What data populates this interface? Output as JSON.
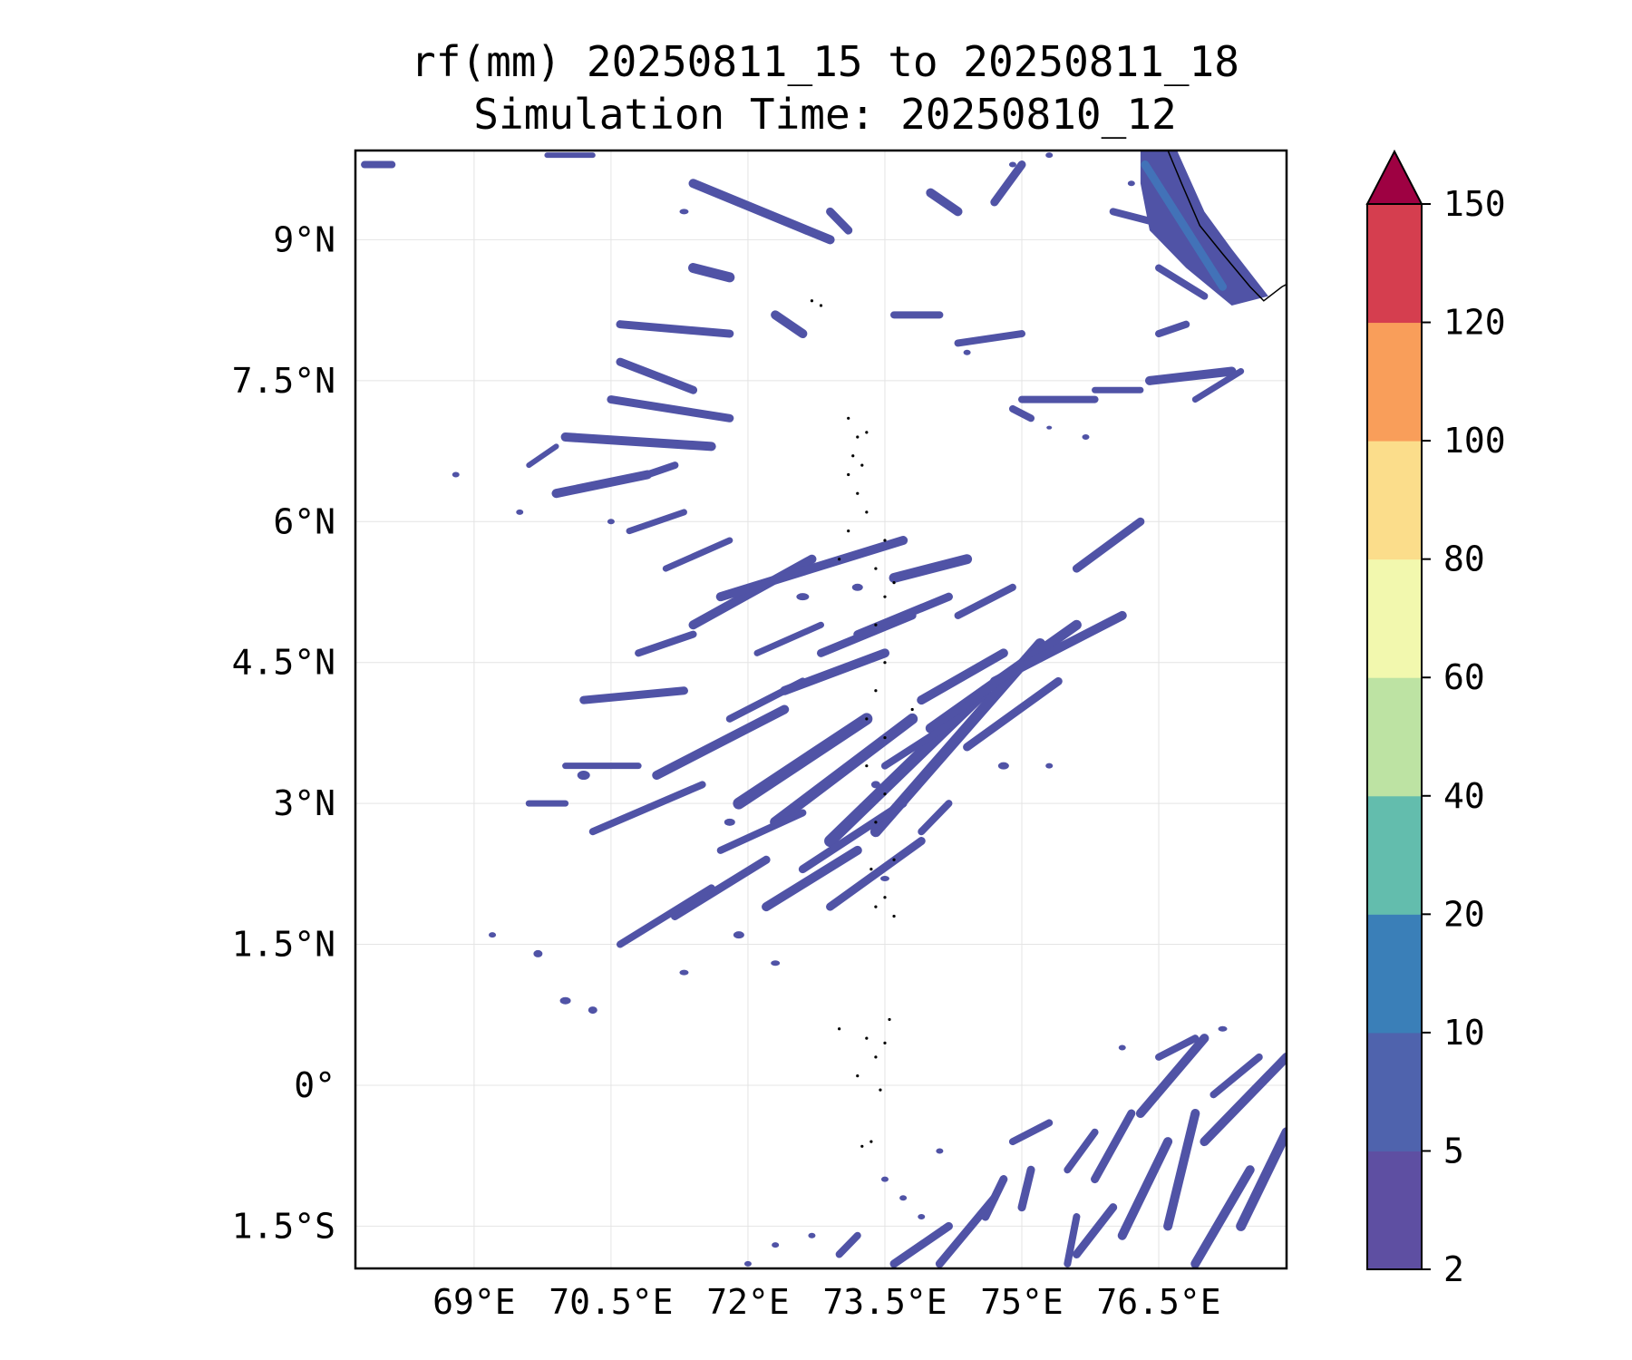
{
  "title": {
    "line1": "rf(mm) 20250811_15 to 20250811_18",
    "line2": "Simulation Time: 20250810_12"
  },
  "map": {
    "lon_range": [
      67.7,
      77.9
    ],
    "lat_range": [
      -1.95,
      9.95
    ],
    "lon_ticks": [
      69,
      70.5,
      72,
      73.5,
      75,
      76.5
    ],
    "lon_labels": [
      "69°E",
      "70.5°E",
      "72°E",
      "73.5°E",
      "75°E",
      "76.5°E"
    ],
    "lat_ticks": [
      9,
      7.5,
      6,
      4.5,
      3,
      1.5,
      0,
      -1.5
    ],
    "lat_labels": [
      "9°N",
      "7.5°N",
      "6°N",
      "4.5°N",
      "3°N",
      "1.5°N",
      "0°",
      "1.5°S"
    ],
    "rain_color": "#5053a6",
    "rain_color_heavy": "#3f7bbd",
    "coast_color": "#000000"
  },
  "colorbar": {
    "levels": [
      "2",
      "5",
      "10",
      "20",
      "40",
      "60",
      "80",
      "100",
      "120",
      "150"
    ],
    "colors": [
      "#5e4fa2",
      "#4f63ad",
      "#3a7fb8",
      "#63bdad",
      "#bde3a3",
      "#f2f8ae",
      "#fbdd8b",
      "#f99e5a",
      "#d53e4f"
    ],
    "extend_color": "#9e0142"
  }
}
